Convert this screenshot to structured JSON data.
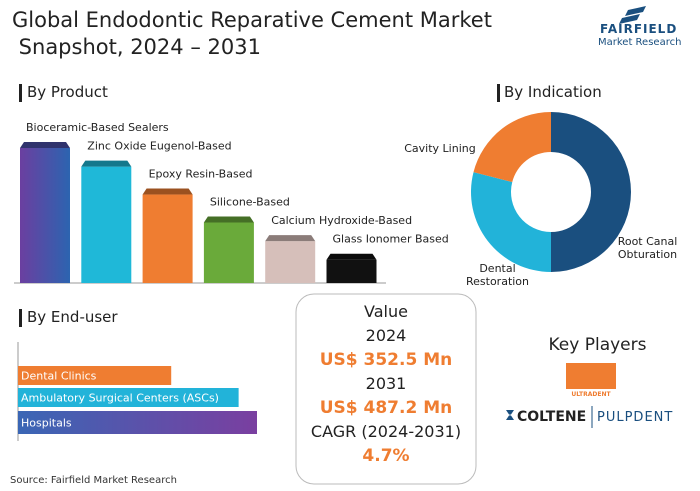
{
  "header": {
    "title": "Global Endodontic Reparative Cement Market Snapshot, 2024 – 2031",
    "logo_name": "FAIRFIELD",
    "logo_sub": "Market Research"
  },
  "chart_data": [
    {
      "type": "bar",
      "title": "By Product",
      "categories": [
        "Bioceramic-Based Sealers",
        "Zinc Oxide Eugenol-Based",
        "Epoxy Resin-Based",
        "Silicone-Based",
        "Calcium Hydroxide-Based",
        "Glass Ionomer Based"
      ],
      "values": [
        29,
        25,
        19,
        13,
        9,
        5
      ],
      "colors": [
        "#4a4fa8",
        "#1fb8d8",
        "#ef7d31",
        "#6aaa3a",
        "#d6bfba",
        "#111111"
      ]
    },
    {
      "type": "donut",
      "title": "By Indication",
      "categories": [
        "Root Canal Obturation",
        "Dental Restoration",
        "Cavity Lining"
      ],
      "values": [
        50,
        29,
        21
      ],
      "colors": [
        "#1a4f7f",
        "#22b3d9",
        "#ef7d31"
      ]
    },
    {
      "type": "hbar",
      "title": "By End-user",
      "categories": [
        "Dental Clinics",
        "Ambulatory Surgical Centers (ASCs)",
        "Hospitals"
      ],
      "values": [
        25,
        36,
        39
      ],
      "colors": [
        "#ef7d31",
        "#22b3d9",
        "#5a3f9a"
      ]
    }
  ],
  "market_value": {
    "title": "Value",
    "year_1": "2024",
    "value_1": "US$ 352.5 Mn",
    "year_2": "2031",
    "value_2": "US$ 487.2 Mn",
    "cagr_label": "CAGR (2024-2031)",
    "cagr": "4.7%"
  },
  "key_players": {
    "title": "Key Players",
    "names": [
      "ULTRADENT",
      "COLTENE",
      "PULPDENT"
    ]
  },
  "source": "Source: Fairfield Market Research"
}
